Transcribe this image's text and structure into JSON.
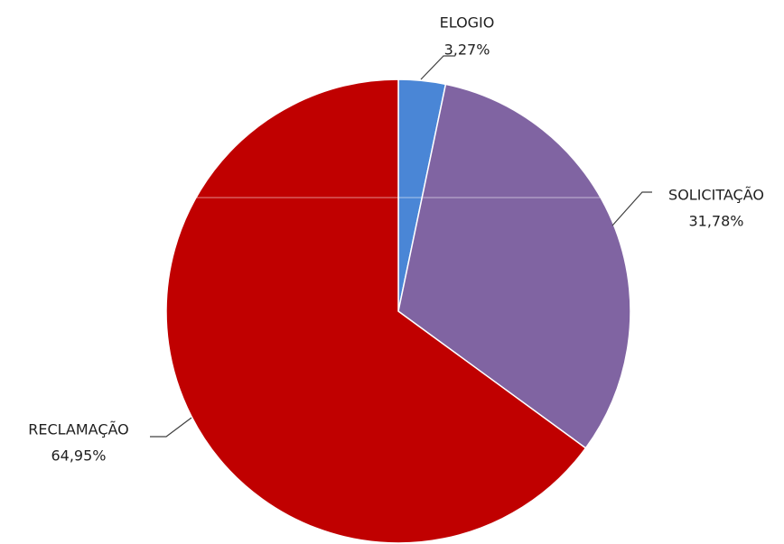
{
  "chart_data": {
    "type": "pie",
    "start_angle_deg": 0,
    "direction": "clockwise",
    "slices": [
      {
        "label": "ELOGIO",
        "display_value": "3,27%",
        "value": 3.27,
        "color": "#4a86d6"
      },
      {
        "label": "SOLICITAÇÃO",
        "display_value": "31,78%",
        "value": 31.78,
        "color": "#8064a2"
      },
      {
        "label": "RECLAMAÇÃO",
        "display_value": "64,95%",
        "value": 64.95,
        "color": "#c00000"
      }
    ]
  }
}
